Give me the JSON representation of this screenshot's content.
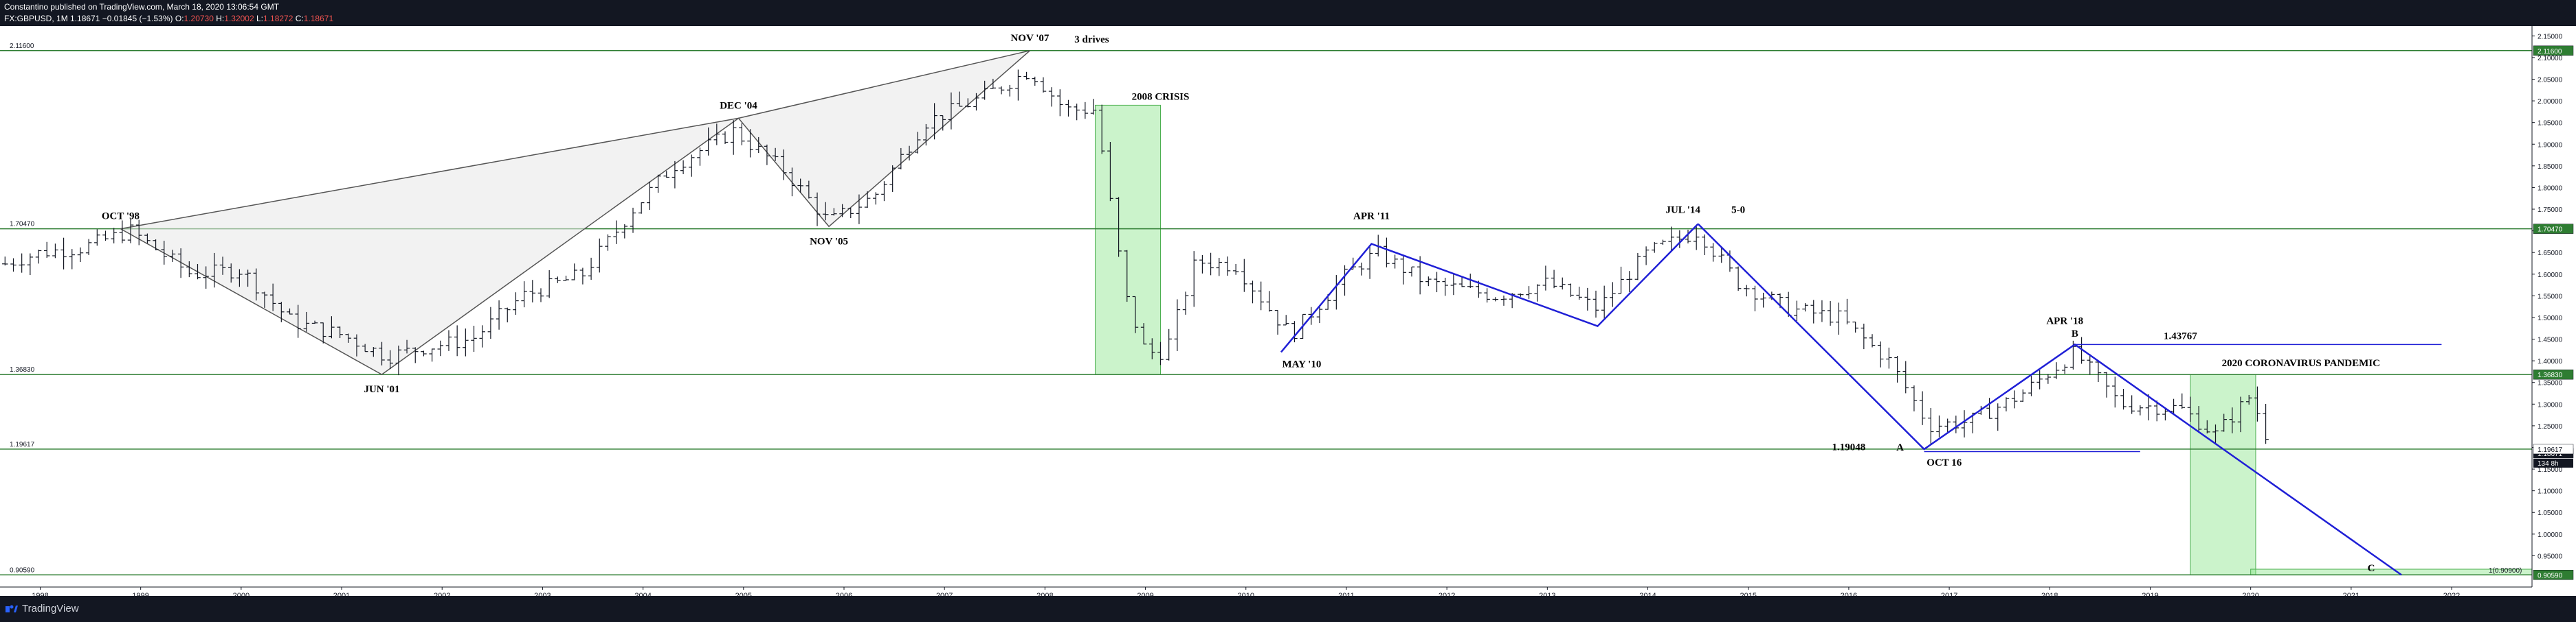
{
  "header": {
    "publisher_line": "Constantino published on TradingView.com, March 18, 2020 13:06:54 GMT",
    "symbol": "FX:GBPUSD, 1M",
    "close_last": "1.18671",
    "change": "−0.01845 (−1.53%)",
    "o_label": "O:",
    "open": "1.20730",
    "h_label": "H:",
    "high": "1.32002",
    "l_label": "L:",
    "low": "1.18272",
    "c_label": "C:",
    "close": "1.18671"
  },
  "footer": {
    "brand": "TradingView"
  },
  "colors": {
    "background": "#ffffff",
    "bars": "#131722",
    "level_lines": "#2e7d32",
    "pattern_lines": "#1f1fd6",
    "harmonic_lines": "#555555",
    "highlight": "#7ee07e",
    "down_price": "#ef5350"
  },
  "chart_data": {
    "type": "ohlc",
    "title": "",
    "symbol": "FX:GBPUSD",
    "interval": "1M",
    "x_axis": {
      "range": [
        1997.6,
        2022.8
      ],
      "tick_labels": [
        "1998",
        "1999",
        "2000",
        "2001",
        "2002",
        "2003",
        "2004",
        "2005",
        "2006",
        "2007",
        "2008",
        "2009",
        "2010",
        "2011",
        "2012",
        "2013",
        "2014",
        "2015",
        "2016",
        "2017",
        "2018",
        "2019",
        "2020",
        "2021",
        "2022"
      ]
    },
    "y_axis": {
      "range": [
        0.9,
        2.16
      ],
      "position": "right",
      "tick_labels": [
        "2.15000",
        "2.10000",
        "2.05000",
        "2.00000",
        "1.95000",
        "1.90000",
        "1.85000",
        "1.80000",
        "1.75000",
        "1.70000",
        "1.65000",
        "1.60000",
        "1.55000",
        "1.50000",
        "1.45000",
        "1.40000",
        "1.35000",
        "1.30000",
        "1.25000",
        "1.20000",
        "1.15000",
        "1.10000",
        "1.05000",
        "1.00000",
        "0.95000"
      ],
      "badges": [
        "2.11600",
        "1.70470",
        "1.36830",
        "1.18671",
        "1.19617",
        "0.90590"
      ],
      "badge_extra": "134 8h"
    },
    "grid": false,
    "path": [
      [
        1997.6,
        1.62
      ],
      [
        1998.0,
        1.65
      ],
      [
        1998.4,
        1.66
      ],
      [
        1998.9,
        1.7
      ],
      [
        1999.5,
        1.6
      ],
      [
        2000.0,
        1.61
      ],
      [
        2000.5,
        1.49
      ],
      [
        2001.0,
        1.46
      ],
      [
        2001.45,
        1.41
      ],
      [
        2001.8,
        1.43
      ],
      [
        2002.3,
        1.45
      ],
      [
        2002.8,
        1.55
      ],
      [
        2003.4,
        1.6
      ],
      [
        2003.9,
        1.75
      ],
      [
        2004.3,
        1.85
      ],
      [
        2004.9,
        1.93
      ],
      [
        2005.4,
        1.84
      ],
      [
        2005.85,
        1.72
      ],
      [
        2006.3,
        1.78
      ],
      [
        2006.8,
        1.95
      ],
      [
        2007.3,
        2.0
      ],
      [
        2007.85,
        2.07
      ],
      [
        2008.2,
        1.98
      ],
      [
        2008.5,
        1.98
      ],
      [
        2008.8,
        1.55
      ],
      [
        2009.0,
        1.42
      ],
      [
        2009.2,
        1.42
      ],
      [
        2009.5,
        1.63
      ],
      [
        2009.9,
        1.62
      ],
      [
        2010.3,
        1.5
      ],
      [
        2010.45,
        1.46
      ],
      [
        2011.0,
        1.6
      ],
      [
        2011.3,
        1.65
      ],
      [
        2011.8,
        1.58
      ],
      [
        2012.5,
        1.55
      ],
      [
        2013.0,
        1.58
      ],
      [
        2013.5,
        1.52
      ],
      [
        2014.0,
        1.65
      ],
      [
        2014.5,
        1.7
      ],
      [
        2014.9,
        1.58
      ],
      [
        2015.4,
        1.52
      ],
      [
        2015.9,
        1.5
      ],
      [
        2016.4,
        1.4
      ],
      [
        2016.8,
        1.25
      ],
      [
        2017.2,
        1.26
      ],
      [
        2017.7,
        1.32
      ],
      [
        2018.25,
        1.42
      ],
      [
        2018.7,
        1.3
      ],
      [
        2019.3,
        1.29
      ],
      [
        2019.65,
        1.23
      ],
      [
        2020.0,
        1.32
      ],
      [
        2020.22,
        1.19
      ]
    ],
    "horizontal_levels": [
      {
        "value": 2.116,
        "label": "2.11600"
      },
      {
        "value": 1.7047,
        "label": "1.70470"
      },
      {
        "value": 1.3683,
        "label": "1.36830"
      },
      {
        "value": 1.19617,
        "label": "1.19617"
      },
      {
        "value": 0.9059,
        "label": "0.90590"
      }
    ],
    "highlight_zones": [
      {
        "x_from": 2008.5,
        "x_to": 2009.15,
        "y_from": 1.3683,
        "y_to": 1.99,
        "label": "2008 CRISIS"
      },
      {
        "x_from": 2019.4,
        "x_to": 2020.05,
        "y_from": 0.9059,
        "y_to": 1.3683,
        "label": "2020 CORONAVIRUS PANDEMIC"
      },
      {
        "x_from": 2020.0,
        "x_to": 2022.8,
        "y_from": 0.9059,
        "y_to": 0.919,
        "label": "1(0.90900)"
      }
    ],
    "harmonic_pattern": {
      "points": [
        {
          "x": 1998.8,
          "y": 1.7047,
          "label": "OCT '98"
        },
        {
          "x": 2001.4,
          "y": 1.3683,
          "label": "JUN '01"
        },
        {
          "x": 2004.95,
          "y": 1.96,
          "label": "DEC '04"
        },
        {
          "x": 2005.85,
          "y": 1.71,
          "label": "NOV '05"
        },
        {
          "x": 2007.85,
          "y": 2.116,
          "label": "NOV '07"
        }
      ],
      "note": "3 drives"
    },
    "pattern_lines": [
      {
        "points": [
          [
            2010.35,
            1.42
          ],
          [
            2011.25,
            1.67
          ],
          [
            2013.5,
            1.48
          ],
          [
            2014.5,
            1.716
          ]
        ],
        "labels": [
          "MAY '10",
          "APR '11",
          "JUL '14"
        ],
        "note": "5-0"
      },
      {
        "points": [
          [
            2014.5,
            1.716
          ],
          [
            2016.75,
            1.196
          ],
          [
            2018.25,
            1.4377
          ],
          [
            2021.5,
            0.9059
          ]
        ],
        "labels": [
          "OCT 16",
          "APR '18"
        ]
      }
    ],
    "level_segments": [
      {
        "x_from": 2018.25,
        "x_to": 2021.9,
        "value": 1.43767,
        "label": "1.43767"
      },
      {
        "x_from": 2016.75,
        "x_to": 2018.9,
        "value": 1.19048,
        "label": "1.19048"
      }
    ],
    "point_letters": [
      {
        "x": 2016.75,
        "y": 1.19,
        "label": "A"
      },
      {
        "x": 2018.25,
        "y": 1.44,
        "label": "B"
      },
      {
        "x": 2021.2,
        "y": 0.905,
        "label": "C"
      }
    ]
  }
}
